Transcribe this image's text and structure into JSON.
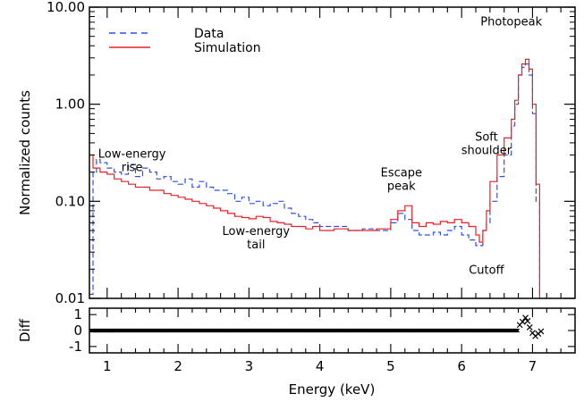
{
  "chart_data": [
    {
      "type": "line",
      "panel": "main",
      "xlabel": "",
      "ylabel": "Normalized counts",
      "xlim": [
        0.75,
        7.6
      ],
      "ylim": [
        0.01,
        10
      ],
      "yscale": "log",
      "ytick_labels": [
        "0.01",
        "0.10",
        "1.00",
        "10.00"
      ],
      "ytick_values": [
        0.01,
        0.1,
        1,
        10
      ],
      "series": [
        {
          "name": "Data",
          "color": "#3050e0",
          "style": "dashed",
          "x": [
            0.75,
            0.8,
            0.85,
            0.9,
            1.0,
            1.1,
            1.2,
            1.3,
            1.4,
            1.5,
            1.6,
            1.7,
            1.8,
            1.9,
            2.0,
            2.1,
            2.2,
            2.3,
            2.4,
            2.5,
            2.6,
            2.7,
            2.8,
            2.9,
            3.0,
            3.1,
            3.2,
            3.3,
            3.4,
            3.5,
            3.6,
            3.7,
            3.8,
            3.9,
            4.0,
            4.2,
            4.4,
            4.6,
            4.8,
            5.0,
            5.1,
            5.2,
            5.3,
            5.4,
            5.5,
            5.6,
            5.7,
            5.8,
            5.9,
            6.0,
            6.1,
            6.2,
            6.3,
            6.35,
            6.4,
            6.5,
            6.6,
            6.7,
            6.75,
            6.8,
            6.85,
            6.9,
            6.95,
            7.0,
            7.05,
            7.1
          ],
          "values": [
            0.011,
            0.2,
            0.27,
            0.25,
            0.22,
            0.2,
            0.19,
            0.24,
            0.18,
            0.22,
            0.2,
            0.17,
            0.18,
            0.16,
            0.15,
            0.17,
            0.14,
            0.16,
            0.14,
            0.13,
            0.13,
            0.12,
            0.1,
            0.11,
            0.095,
            0.1,
            0.09,
            0.095,
            0.1,
            0.085,
            0.075,
            0.07,
            0.065,
            0.06,
            0.055,
            0.055,
            0.05,
            0.052,
            0.05,
            0.06,
            0.075,
            0.065,
            0.05,
            0.045,
            0.045,
            0.048,
            0.045,
            0.05,
            0.055,
            0.045,
            0.04,
            0.035,
            0.05,
            0.06,
            0.1,
            0.18,
            0.3,
            0.6,
            1.0,
            2.0,
            2.4,
            2.6,
            2.0,
            0.8,
            0.1,
            0.009
          ]
        },
        {
          "name": "Simulation",
          "color": "#e8202a",
          "style": "solid",
          "x": [
            0.75,
            0.8,
            0.9,
            1.0,
            1.1,
            1.2,
            1.3,
            1.4,
            1.5,
            1.6,
            1.7,
            1.8,
            1.9,
            2.0,
            2.1,
            2.2,
            2.3,
            2.4,
            2.5,
            2.6,
            2.7,
            2.8,
            2.9,
            3.0,
            3.1,
            3.2,
            3.3,
            3.4,
            3.5,
            3.6,
            3.7,
            3.8,
            3.9,
            4.0,
            4.2,
            4.4,
            4.6,
            4.8,
            5.0,
            5.1,
            5.2,
            5.3,
            5.4,
            5.5,
            5.6,
            5.7,
            5.8,
            5.9,
            6.0,
            6.1,
            6.2,
            6.25,
            6.3,
            6.35,
            6.4,
            6.5,
            6.6,
            6.7,
            6.75,
            6.8,
            6.85,
            6.9,
            6.95,
            7.0,
            7.05,
            7.1
          ],
          "values": [
            0.3,
            0.22,
            0.2,
            0.19,
            0.17,
            0.16,
            0.15,
            0.14,
            0.14,
            0.13,
            0.13,
            0.12,
            0.115,
            0.11,
            0.105,
            0.1,
            0.095,
            0.09,
            0.085,
            0.08,
            0.075,
            0.07,
            0.068,
            0.066,
            0.07,
            0.068,
            0.062,
            0.06,
            0.058,
            0.055,
            0.055,
            0.052,
            0.055,
            0.05,
            0.052,
            0.05,
            0.05,
            0.052,
            0.065,
            0.08,
            0.09,
            0.06,
            0.055,
            0.06,
            0.058,
            0.062,
            0.06,
            0.065,
            0.06,
            0.055,
            0.045,
            0.038,
            0.05,
            0.08,
            0.16,
            0.3,
            0.45,
            0.7,
            1.1,
            2.0,
            2.6,
            2.9,
            2.3,
            1.0,
            0.15,
            0.009
          ]
        }
      ],
      "legend": [
        {
          "label": "Data",
          "color": "#3050e0",
          "style": "dashed"
        },
        {
          "label": "Simulation",
          "color": "#e8202a",
          "style": "solid"
        }
      ],
      "legend_position": "top-left",
      "annotations": [
        {
          "lines": [
            "Photopeak"
          ],
          "x": 6.7,
          "y": 6.5
        },
        {
          "lines": [
            "Low-energy",
            "rise"
          ],
          "x": 1.35,
          "y": 0.28
        },
        {
          "lines": [
            "Soft",
            "shoulder"
          ],
          "x": 6.35,
          "y": 0.42
        },
        {
          "lines": [
            "Escape",
            "peak"
          ],
          "x": 5.15,
          "y": 0.18
        },
        {
          "lines": [
            "Low-energy",
            "tail"
          ],
          "x": 3.1,
          "y": 0.045
        },
        {
          "lines": [
            "Cutoff"
          ],
          "x": 6.35,
          "y": 0.018
        }
      ]
    },
    {
      "type": "scatter",
      "panel": "residual",
      "xlabel": "Energy (keV)",
      "ylabel": "Diff",
      "xlim": [
        0.75,
        7.6
      ],
      "ylim": [
        -1.4,
        1.4
      ],
      "xtick_labels": [
        "1",
        "2",
        "3",
        "4",
        "5",
        "6",
        "7"
      ],
      "xtick_values": [
        1,
        2,
        3,
        4,
        5,
        6,
        7
      ],
      "ytick_labels": [
        "-1",
        "0",
        "1"
      ],
      "ytick_values": [
        -1,
        0,
        1
      ],
      "outliers": {
        "x": [
          6.82,
          6.86,
          6.9,
          6.93,
          6.96,
          7.0,
          7.04,
          7.08,
          7.12
        ],
        "y": [
          0.35,
          0.55,
          0.8,
          0.6,
          0.2,
          -0.15,
          -0.35,
          -0.2,
          -0.05
        ]
      }
    }
  ]
}
